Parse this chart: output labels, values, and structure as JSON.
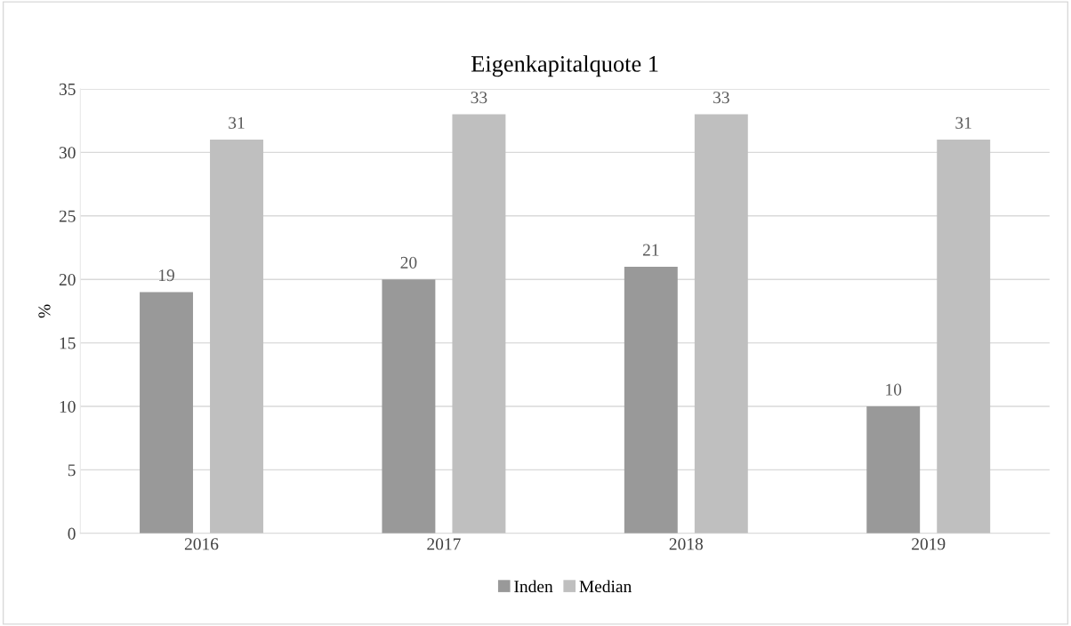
{
  "chart_data": {
    "type": "bar",
    "title": "Eigenkapitalquote 1",
    "ylabel": "%",
    "categories": [
      "2016",
      "2017",
      "2018",
      "2019"
    ],
    "series": [
      {
        "name": "Inden",
        "color": "#999999",
        "values": [
          19,
          20,
          21,
          10
        ]
      },
      {
        "name": "Median",
        "color": "#bfbfbf",
        "values": [
          31,
          33,
          33,
          31
        ]
      }
    ],
    "ylim": [
      0,
      35
    ],
    "yticks": [
      0,
      5,
      10,
      15,
      20,
      25,
      30,
      35
    ],
    "grid": "y",
    "legend": "bottom",
    "data_labels": true
  }
}
